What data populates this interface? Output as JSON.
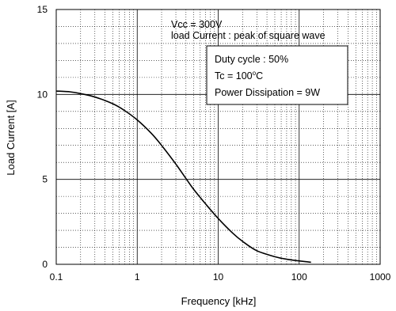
{
  "chart_data": {
    "type": "line",
    "xscale": "log",
    "xlim": [
      0.1,
      1000
    ],
    "ylim": [
      0,
      15
    ],
    "xlabel": "Frequency [kHz]",
    "ylabel": "Load Current [A]",
    "xticks": [
      "0.1",
      "1",
      "10",
      "100",
      "1000"
    ],
    "yticks": [
      "0",
      "5",
      "10",
      "15"
    ],
    "grid": true,
    "series": [
      {
        "x": [
          0.1,
          0.15,
          0.2,
          0.3,
          0.5,
          0.7,
          1,
          1.5,
          2,
          3,
          4,
          5,
          7,
          10,
          15,
          20,
          30,
          50,
          70,
          100,
          140
        ],
        "y": [
          10.2,
          10.15,
          10.05,
          9.85,
          9.45,
          9.05,
          8.5,
          7.7,
          7.0,
          5.9,
          5.05,
          4.4,
          3.55,
          2.7,
          1.85,
          1.35,
          0.8,
          0.45,
          0.3,
          0.2,
          0.12
        ]
      }
    ],
    "annotations": {
      "line1": "Vcc = 300V",
      "line2": "load Current : peak of square wave",
      "box_line1": "Duty cycle : 50%",
      "box_line2_prefix": "Tc = 100",
      "box_line2_sup": "o",
      "box_line2_suffix": "C",
      "box_line3": "Power Dissipation = 9W"
    }
  }
}
